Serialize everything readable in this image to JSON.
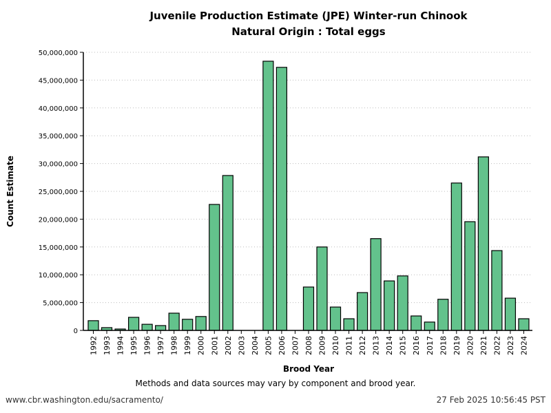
{
  "chart_data": {
    "type": "bar",
    "title": "Juvenile Production Estimate (JPE) Winter-run Chinook",
    "subtitle": "Natural Origin : Total eggs",
    "xlabel": "Brood Year",
    "ylabel": "Count Estimate",
    "ylim": [
      0,
      50000000
    ],
    "yticks": [
      "0",
      "5,000,000",
      "10,000,000",
      "15,000,000",
      "20,000,000",
      "25,000,000",
      "30,000,000",
      "35,000,000",
      "40,000,000",
      "45,000,000",
      "50,000,000"
    ],
    "grid": "horizontal dotted",
    "bar_color": "#63c28c",
    "categories": [
      "1992",
      "1993",
      "1994",
      "1995",
      "1996",
      "1997",
      "1998",
      "1999",
      "2000",
      "2001",
      "2002",
      "2003",
      "2004",
      "2005",
      "2006",
      "2007",
      "2008",
      "2009",
      "2010",
      "2011",
      "2012",
      "2013",
      "2014",
      "2015",
      "2016",
      "2017",
      "2018",
      "2019",
      "2020",
      "2021",
      "2022",
      "2023",
      "2024"
    ],
    "values": [
      1750000,
      500000,
      250000,
      2350000,
      1100000,
      870000,
      3100000,
      2000000,
      2500000,
      22650000,
      27850000,
      null,
      null,
      48400000,
      47300000,
      null,
      7800000,
      15000000,
      4200000,
      2100000,
      6800000,
      16500000,
      8900000,
      9800000,
      2600000,
      1500000,
      5600000,
      26500000,
      19550000,
      31200000,
      14350000,
      5800000,
      2100000
    ]
  },
  "footer": {
    "note": "Methods and data sources may vary by component and brood year.",
    "url": "www.cbr.washington.edu/sacramento/",
    "timestamp": "27 Feb 2025 10:56:45 PST"
  }
}
